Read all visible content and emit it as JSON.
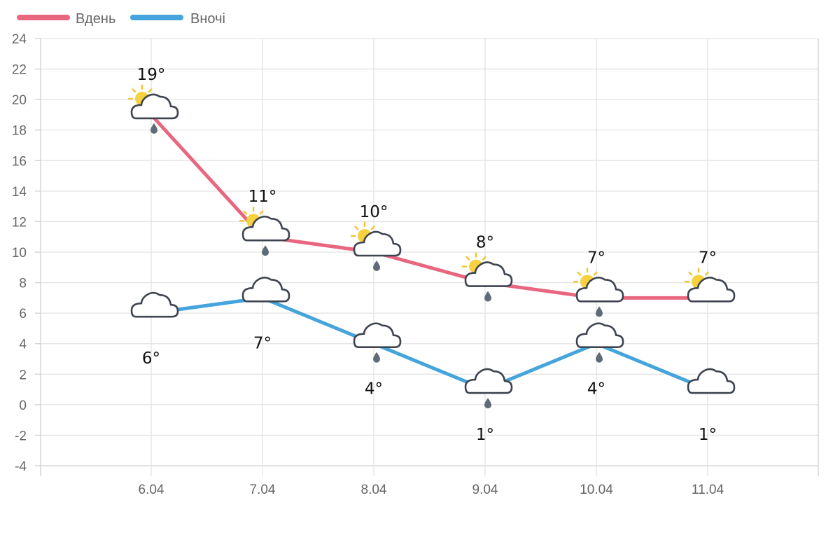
{
  "chart_data": {
    "type": "line",
    "categories": [
      "6.04",
      "7.04",
      "8.04",
      "9.04",
      "10.04",
      "11.04"
    ],
    "ylim": [
      -4,
      24
    ],
    "yticks": [
      24,
      22,
      20,
      18,
      16,
      14,
      12,
      10,
      8,
      6,
      4,
      2,
      0,
      -2,
      -4
    ],
    "grid": true,
    "legend_position": "top-left",
    "series": [
      {
        "name": "Вдень",
        "color": "#e8677f",
        "values": [
          19,
          11,
          10,
          8,
          7,
          7
        ],
        "labels": [
          "19°",
          "11°",
          "10°",
          "8°",
          "7°",
          "7°"
        ],
        "icons": [
          "sun-cloud-rain-icon",
          "sun-cloud-rain-icon",
          "sun-cloud-rain-icon",
          "sun-cloud-rain-icon",
          "sun-cloud-rain-icon",
          "sun-cloud-icon"
        ]
      },
      {
        "name": "Вночі",
        "color": "#45a4dc",
        "values": [
          6,
          7,
          4,
          1,
          4,
          1
        ],
        "labels": [
          "6°",
          "7°",
          "4°",
          "1°",
          "4°",
          "1°"
        ],
        "icons": [
          "moon-cloud-icon",
          "moon-cloud-icon",
          "moon-cloud-rain-icon",
          "moon-cloud-rain-icon",
          "moon-cloud-rain-icon",
          "moon-cloud-icon"
        ]
      }
    ]
  },
  "legend": [
    {
      "label": "Вдень",
      "color": "#e8677f"
    },
    {
      "label": "Вночі",
      "color": "#45a4dc"
    }
  ]
}
